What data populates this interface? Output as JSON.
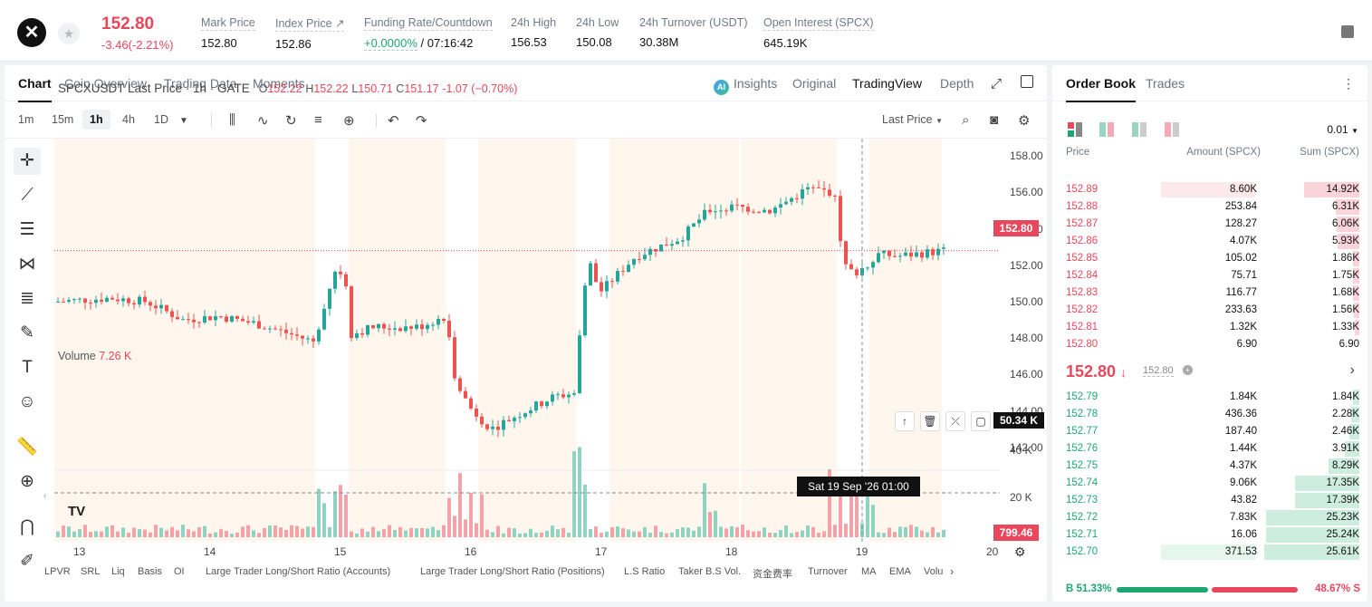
{
  "header": {
    "price": "152.80",
    "change": "-3.46(-2.21%)",
    "stats": [
      {
        "label": "Mark Price",
        "value": "152.80"
      },
      {
        "label": "Index Price ↗",
        "value": "152.86"
      },
      {
        "label": "Funding Rate/Countdown",
        "value_green": "+0.0000%",
        "value": " / 07:16:42"
      },
      {
        "label": "24h High",
        "value": "156.53"
      },
      {
        "label": "24h Low",
        "value": "150.08"
      },
      {
        "label": "24h Turnover (USDT)",
        "value": "30.38M"
      },
      {
        "label": "Open Interest (SPCX)",
        "value": "645.19K"
      }
    ]
  },
  "chart_tabs": {
    "left": [
      "Chart",
      "Coin Overview",
      "Trading Data",
      "Moments"
    ],
    "right": [
      "Insights",
      "Original",
      "TradingView",
      "Depth"
    ],
    "active_left": "Chart",
    "active_right": "TradingView",
    "ai_badge": "AI"
  },
  "toolbar": {
    "timeframes": [
      "1m",
      "15m",
      "1h",
      "4h",
      "1D"
    ],
    "selected": "1h",
    "price_type": "Last Price"
  },
  "legend": {
    "symbol": "SPCXUSDT Last Price · 1h · GATE",
    "o": "152.22",
    "h": "152.22",
    "l": "150.71",
    "c": "151.17",
    "change": "-1.07 (−0.70%)",
    "volume_label": "Volume",
    "volume_value": "7.26 K"
  },
  "price_labels": {
    "last": "152.80",
    "crosshair_vol": "50.34 K",
    "last_vol": "799.46",
    "crosshair_time": "Sat 19 Sep '26   01:00"
  },
  "chart_data": {
    "type": "candlestick",
    "x_ticks": [
      "13",
      "14",
      "15",
      "16",
      "17",
      "18",
      "19",
      "20"
    ],
    "y_ticks": [
      "158.00",
      "156.00",
      "154.00",
      "152.00",
      "150.00",
      "148.00",
      "146.00",
      "144.00",
      "142.00"
    ],
    "volume_ticks": [
      "40 K",
      "20 K"
    ],
    "ylim": [
      141,
      158.5
    ],
    "last_price": 152.8,
    "legend_ohlc": {
      "open": 152.22,
      "high": 152.22,
      "low": 150.71,
      "close": 151.17
    }
  },
  "indicators": [
    "LPVR",
    "SRL",
    "Liq",
    "Basis",
    "OI",
    "Large Trader Long/Short Ratio (Accounts)",
    "Large Trader Long/Short Ratio (Positions)",
    "L.S Ratio",
    "Taker B.S Vol.",
    "资金费率",
    "Turnover",
    "MA",
    "EMA",
    "Volu"
  ],
  "orderbook": {
    "tabs": [
      "Order Book",
      "Trades"
    ],
    "tick": "0.01",
    "headers": [
      "Price",
      "Amount (SPCX)",
      "Sum (SPCX)"
    ],
    "asks": [
      {
        "price": "152.89",
        "amount": "8.60K",
        "sum": "14.92K",
        "amt_frac": 0.58,
        "sum_frac": 0.58
      },
      {
        "price": "152.88",
        "amount": "253.84",
        "sum": "6.31K",
        "amt_frac": 0.0,
        "sum_frac": 0.25
      },
      {
        "price": "152.87",
        "amount": "128.27",
        "sum": "6.06K",
        "amt_frac": 0.0,
        "sum_frac": 0.24
      },
      {
        "price": "152.86",
        "amount": "4.07K",
        "sum": "5.93K",
        "amt_frac": 0.0,
        "sum_frac": 0.23
      },
      {
        "price": "152.85",
        "amount": "105.02",
        "sum": "1.86K",
        "amt_frac": 0.0,
        "sum_frac": 0.07
      },
      {
        "price": "152.84",
        "amount": "75.71",
        "sum": "1.75K",
        "amt_frac": 0.0,
        "sum_frac": 0.07
      },
      {
        "price": "152.83",
        "amount": "116.77",
        "sum": "1.68K",
        "amt_frac": 0.0,
        "sum_frac": 0.07
      },
      {
        "price": "152.82",
        "amount": "233.63",
        "sum": "1.56K",
        "amt_frac": 0.0,
        "sum_frac": 0.06
      },
      {
        "price": "152.81",
        "amount": "1.32K",
        "sum": "1.33K",
        "amt_frac": 0.0,
        "sum_frac": 0.05
      },
      {
        "price": "152.80",
        "amount": "6.90",
        "sum": "6.90",
        "amt_frac": 0.0,
        "sum_frac": 0.0
      }
    ],
    "mid_price": "152.80",
    "mid_sub": "152.80",
    "bids": [
      {
        "price": "152.79",
        "amount": "1.84K",
        "sum": "1.84K",
        "amt_frac": 0.0,
        "sum_frac": 0.07
      },
      {
        "price": "152.78",
        "amount": "436.36",
        "sum": "2.28K",
        "amt_frac": 0.0,
        "sum_frac": 0.09
      },
      {
        "price": "152.77",
        "amount": "187.40",
        "sum": "2.46K",
        "amt_frac": 0.0,
        "sum_frac": 0.1
      },
      {
        "price": "152.76",
        "amount": "1.44K",
        "sum": "3.91K",
        "amt_frac": 0.0,
        "sum_frac": 0.15
      },
      {
        "price": "152.75",
        "amount": "4.37K",
        "sum": "8.29K",
        "amt_frac": 0.0,
        "sum_frac": 0.32
      },
      {
        "price": "152.74",
        "amount": "9.06K",
        "sum": "17.35K",
        "amt_frac": 0.0,
        "sum_frac": 0.68
      },
      {
        "price": "152.73",
        "amount": "43.82",
        "sum": "17.39K",
        "amt_frac": 0.0,
        "sum_frac": 0.68
      },
      {
        "price": "152.72",
        "amount": "7.83K",
        "sum": "25.23K",
        "amt_frac": 0.0,
        "sum_frac": 0.98
      },
      {
        "price": "152.71",
        "amount": "16.06",
        "sum": "25.24K",
        "amt_frac": 0.0,
        "sum_frac": 0.98
      },
      {
        "price": "152.70",
        "amount": "371.53",
        "sum": "25.61K",
        "amt_frac": 0.58,
        "sum_frac": 1.0
      }
    ],
    "buy_ratio": "B 51.33%",
    "sell_ratio": "48.67% S",
    "colors": {
      "ask": "#e8475c",
      "bid": "#1ea672",
      "ask_bg": "#fde8eb",
      "bid_bg": "#e4f6ee"
    }
  }
}
